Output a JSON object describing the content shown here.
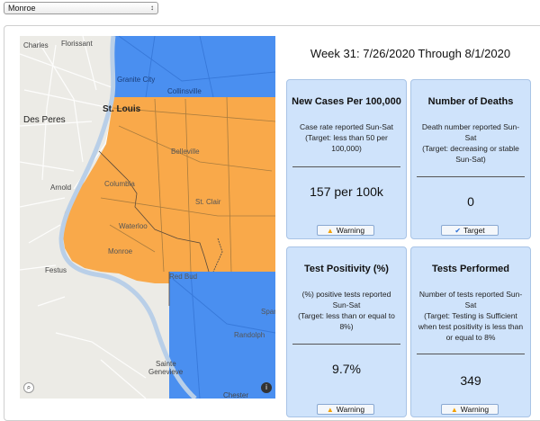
{
  "county_select": {
    "value": "Monroe"
  },
  "week_title": "Week 31: 7/26/2020 Through 8/1/2020",
  "map": {
    "labels": {
      "charles": "Charles",
      "florissant": "Florissant",
      "granite_city": "Granite City",
      "collinsville": "Collinsville",
      "st_louis": "St. Louis",
      "des_peres": "Des Peres",
      "belleville": "Belleville",
      "columbia": "Columbia",
      "arnold": "Arnold",
      "st_clair": "St. Clair",
      "waterloo": "Waterloo",
      "monroe": "Monroe",
      "festus": "Festus",
      "red_bud": "Red Bud",
      "sparta": "Spar",
      "randolph": "Randolph",
      "sainte_genevieve_1": "Sainte",
      "sainte_genevieve_2": "Genevieve",
      "chester": "Chester"
    },
    "colors": {
      "warning_region": "#f9a94a",
      "target_region": "#4a8ff0",
      "land": "#ecebe6",
      "river": "#b9cfe8"
    }
  },
  "cards": {
    "cases": {
      "title": "New Cases Per 100,000",
      "desc": [
        "Case rate reported Sun-Sat",
        "(Target: less than 50 per",
        "100,000)"
      ],
      "value": "157 per 100k",
      "status": "Warning",
      "status_icon": "warning-icon"
    },
    "deaths": {
      "title": "Number of Deaths",
      "desc": [
        "Death number reported Sun-",
        "Sat",
        "(Target: decreasing or stable",
        "Sun-Sat)"
      ],
      "value": "0",
      "status": "Target",
      "status_icon": "check-icon"
    },
    "positivity": {
      "title": "Test Positivity (%)",
      "desc": [
        "(%) positive tests reported",
        "Sun-Sat",
        "(Target: less than or equal to",
        "8%)"
      ],
      "value": "9.7%",
      "status": "Warning",
      "status_icon": "warning-icon"
    },
    "tests": {
      "title": "Tests Performed",
      "desc": [
        "Number of tests reported Sun-",
        "Sat",
        "(Target: Testing is Sufficient",
        "when test positivity is less than",
        "or equal to 8%"
      ],
      "value": "349",
      "status": "Warning",
      "status_icon": "warning-icon"
    }
  }
}
